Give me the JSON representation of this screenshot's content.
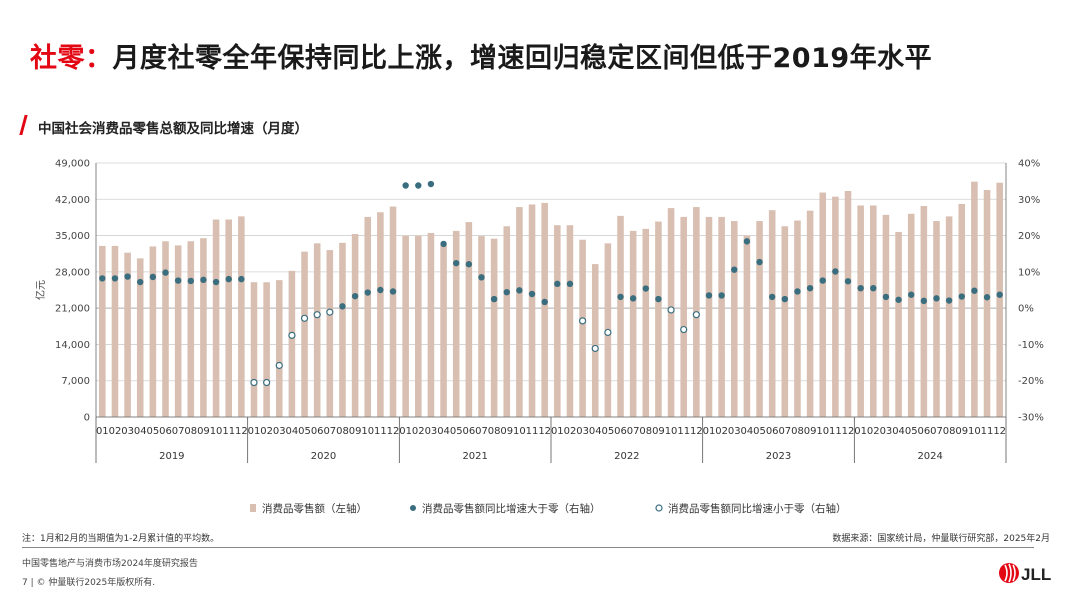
{
  "headline": {
    "tag": "社零：",
    "text": "月度社零全年保持同比上涨，增速回归稳定区间但低于2019年水平"
  },
  "subhead": "中国社会消费品零售总额及同比增速（月度）",
  "note": "注：1月和2月的当期值为1-2月累计值的平均数。",
  "source": "数据来源：国家统计局，仲量联行研究部，2025年2月",
  "footer": {
    "report": "中国零售地产与消费市场2024年度研究报告",
    "copyright": "7 | © 仲量联行2025年版权所有."
  },
  "logo_text": "JLL",
  "colors": {
    "accent": "#e30613",
    "bar": "#d8bfb1",
    "dot_fill": "#3a6e7f",
    "dot_open": "#3a6e7f"
  },
  "chart_data": {
    "type": "bar",
    "ylabel": "亿元",
    "ylim": [
      0,
      49000
    ],
    "y_ticks": [
      "0",
      "7,000",
      "14,000",
      "21,000",
      "28,000",
      "35,000",
      "42,000",
      "49,000"
    ],
    "y2lim": [
      -30,
      40
    ],
    "y2_ticks": [
      "-30%",
      "-20%",
      "-10%",
      "0%",
      "10%",
      "20%",
      "30%",
      "40%"
    ],
    "months": [
      "01",
      "02",
      "03",
      "04",
      "05",
      "06",
      "07",
      "08",
      "09",
      "10",
      "11",
      "12"
    ],
    "years": [
      "2019",
      "2020",
      "2021",
      "2022",
      "2023",
      "2024"
    ],
    "legend_position": "bottom",
    "series": [
      {
        "name": "消费品零售额（左轴）",
        "kind": "bar",
        "axis": "left",
        "values": [
          33000,
          33000,
          31700,
          30600,
          32900,
          33900,
          33100,
          33900,
          34500,
          38100,
          38100,
          38700,
          26000,
          26000,
          26400,
          28200,
          31900,
          33500,
          32200,
          33600,
          35300,
          38600,
          39500,
          40600,
          35000,
          35000,
          35500,
          33200,
          35900,
          37600,
          34900,
          34400,
          36800,
          40500,
          41000,
          41300,
          37000,
          37000,
          34200,
          29500,
          33500,
          38800,
          35900,
          36300,
          37700,
          40300,
          38600,
          40500,
          38600,
          38600,
          37800,
          35000,
          37800,
          39900,
          36800,
          37900,
          39800,
          43300,
          42500,
          43600,
          40800,
          40800,
          39000,
          35700,
          39200,
          40700,
          37800,
          38700,
          41100,
          45400,
          43800,
          45200
        ]
      },
      {
        "name": "消费品零售额同比增速大于零（右轴）",
        "kind": "dot-filled",
        "axis": "right",
        "values": [
          8.2,
          8.2,
          8.7,
          7.2,
          8.6,
          9.8,
          7.6,
          7.5,
          7.8,
          7.2,
          8.0,
          8.0,
          null,
          null,
          null,
          null,
          null,
          null,
          null,
          0.5,
          3.3,
          4.3,
          5.0,
          4.6,
          33.8,
          33.8,
          34.2,
          17.7,
          12.4,
          12.1,
          8.5,
          2.5,
          4.4,
          4.9,
          3.9,
          1.7,
          6.7,
          6.7,
          null,
          null,
          null,
          3.1,
          2.7,
          5.4,
          2.5,
          null,
          null,
          null,
          3.5,
          3.5,
          10.6,
          18.4,
          12.7,
          3.1,
          2.5,
          4.6,
          5.5,
          7.6,
          10.1,
          7.4,
          5.5,
          5.5,
          3.1,
          2.3,
          3.7,
          2.0,
          2.7,
          2.1,
          3.2,
          4.8,
          3.0,
          3.7
        ]
      },
      {
        "name": "消费品零售额同比增速小于零（右轴）",
        "kind": "dot-open",
        "axis": "right",
        "values": [
          null,
          null,
          null,
          null,
          null,
          null,
          null,
          null,
          null,
          null,
          null,
          null,
          -20.5,
          -20.5,
          -15.8,
          -7.5,
          -2.8,
          -1.8,
          -1.1,
          null,
          null,
          null,
          null,
          null,
          null,
          null,
          null,
          null,
          null,
          null,
          null,
          null,
          null,
          null,
          null,
          null,
          null,
          null,
          -3.5,
          -11.1,
          -6.7,
          null,
          null,
          null,
          null,
          -0.5,
          -5.9,
          -1.8,
          null,
          null,
          null,
          null,
          null,
          null,
          null,
          null,
          null,
          null,
          null,
          null,
          null,
          null,
          null,
          null,
          null,
          null,
          null,
          null,
          null,
          null,
          null,
          null
        ]
      }
    ]
  }
}
